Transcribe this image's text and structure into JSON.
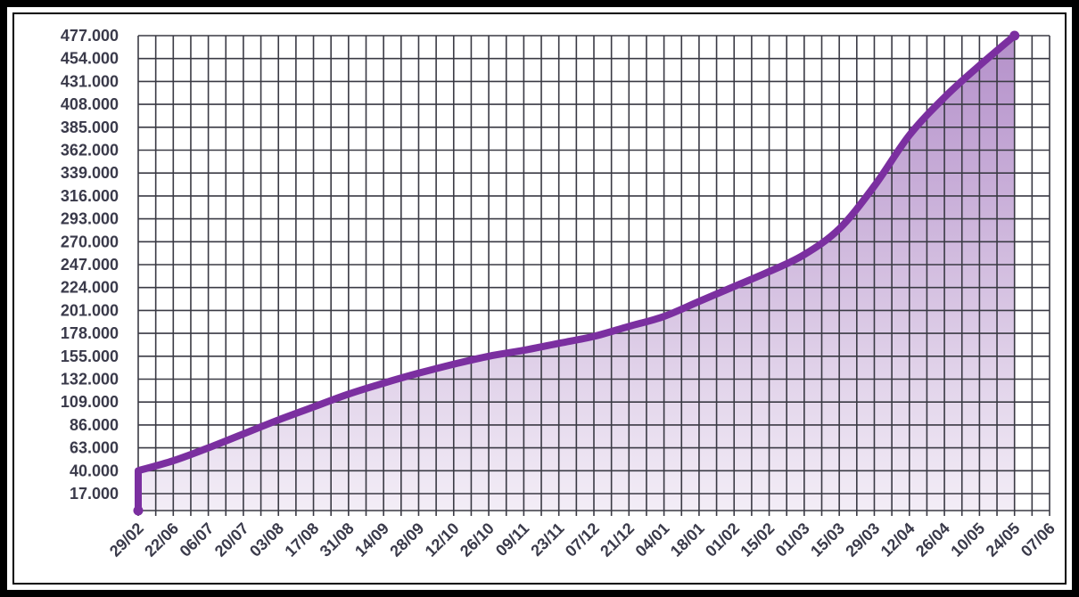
{
  "chart_data": {
    "type": "area",
    "title": "",
    "xlabel": "",
    "ylabel": "",
    "yticks": [
      "17.000",
      "40.000",
      "63.000",
      "86.000",
      "109.000",
      "132.000",
      "155.000",
      "178.000",
      "201.000",
      "224.000",
      "247.000",
      "270.000",
      "293.000",
      "316.000",
      "339.000",
      "362.000",
      "385.000",
      "408.000",
      "431.000",
      "454.000",
      "477.000"
    ],
    "ylim": [
      0,
      477000
    ],
    "xticks": [
      "29/02",
      "22/06",
      "06/07",
      "20/07",
      "03/08",
      "17/08",
      "31/08",
      "14/09",
      "28/09",
      "12/10",
      "26/10",
      "09/11",
      "23/11",
      "07/12",
      "21/12",
      "04/01",
      "18/01",
      "01/02",
      "15/02",
      "01/03",
      "15/03",
      "29/03",
      "12/04",
      "26/04",
      "10/05",
      "24/05",
      "07/06"
    ],
    "grid": true,
    "line_color": "#7b2fa0",
    "fill_color": "#9b6bb8",
    "series": [
      {
        "x": [
          "29/02",
          "29/02",
          "22/06",
          "06/07",
          "20/07",
          "03/08",
          "17/08",
          "31/08",
          "14/09",
          "28/09",
          "12/10",
          "26/10",
          "09/11",
          "23/11",
          "07/12",
          "21/12",
          "04/01",
          "18/01",
          "01/02",
          "15/02",
          "01/03",
          "15/03",
          "29/03",
          "12/04",
          "26/04",
          "10/05",
          "24/05",
          "07/06"
        ],
        "values": [
          0,
          40000,
          50000,
          63000,
          77000,
          91000,
          104000,
          117000,
          128000,
          138000,
          147000,
          155000,
          161000,
          168000,
          175000,
          185000,
          195000,
          210000,
          225000,
          240000,
          257000,
          283000,
          326000,
          377000,
          415000,
          447000,
          477000,
          477000
        ]
      }
    ]
  }
}
